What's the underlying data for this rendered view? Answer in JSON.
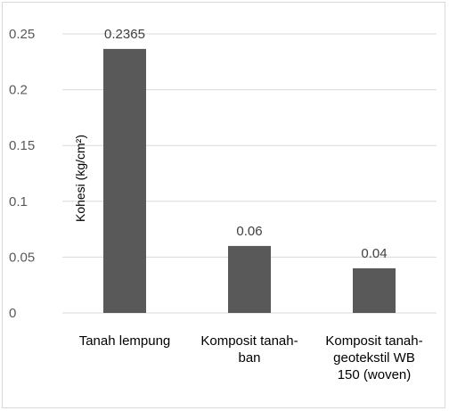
{
  "chart_data": {
    "type": "bar",
    "categories": [
      [
        "Tanah lempung"
      ],
      [
        "Komposit tanah-",
        "ban"
      ],
      [
        "Komposit tanah-",
        "geotekstil WB",
        "150 (woven)"
      ]
    ],
    "values": [
      0.2365,
      0.06,
      0.04
    ],
    "data_labels": [
      "0.2365",
      "0.06",
      "0.04"
    ],
    "ylabel": "Kohesi (kg/cm²)",
    "ylim": [
      0,
      0.25
    ],
    "yticks": [
      "0",
      "0.05",
      "0.1",
      "0.15",
      "0.2",
      "0.25"
    ],
    "grid": true,
    "colors": {
      "bar": "#595959",
      "grid": "#d9d9d9"
    }
  }
}
